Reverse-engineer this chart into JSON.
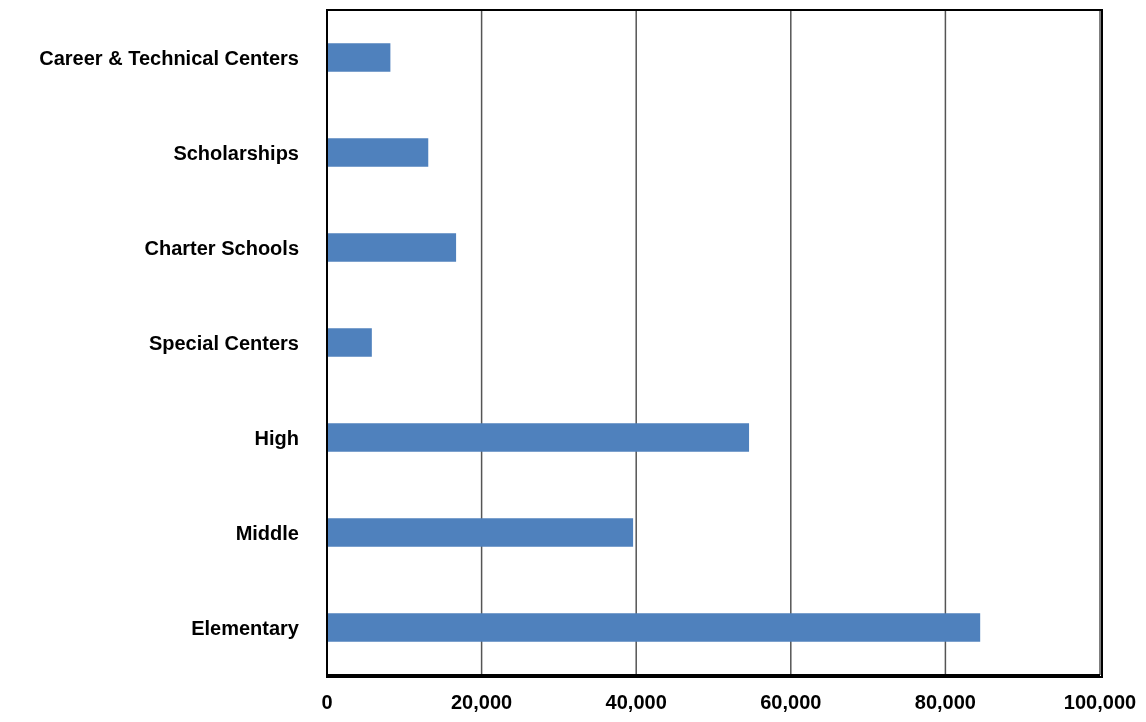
{
  "chart_data": {
    "type": "bar",
    "orientation": "horizontal",
    "categories": [
      "Career & Technical Centers",
      "Scholarships",
      "Charter Schools",
      "Special Centers",
      "High",
      "Middle",
      "Elementary"
    ],
    "values": [
      8200,
      13100,
      16700,
      5800,
      54600,
      39600,
      84500
    ],
    "color": "#4f81bd",
    "xlim": [
      0,
      100000
    ],
    "xticks": [
      0,
      {
        "value": 20000,
        "label": "20,000"
      },
      {
        "value": 40000,
        "label": "40,000"
      },
      {
        "value": 60000,
        "label": "60,000"
      },
      {
        "value": 80000,
        "label": "80,000"
      },
      {
        "value": 100000,
        "label": "100,000"
      }
    ],
    "grid": "x",
    "legend": false
  }
}
